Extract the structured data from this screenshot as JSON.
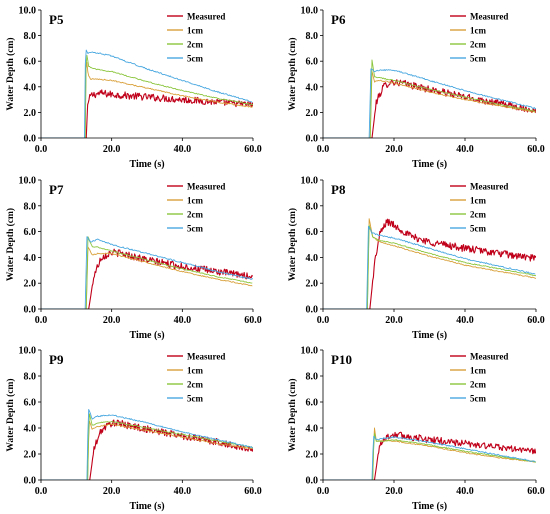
{
  "chart_data": [
    {
      "type": "line",
      "panel_label": "P5",
      "xlabel": "Time (s)",
      "ylabel": "Water Depth (cm)",
      "xlim": [
        0,
        60
      ],
      "ylim": [
        0,
        10
      ],
      "xticks": [
        "0.0",
        "20.0",
        "40.0",
        "60.0"
      ],
      "yticks": [
        "0.0",
        "2.0",
        "4.0",
        "6.0",
        "8.0",
        "10.0"
      ],
      "legend_position": "top-right",
      "grid": false,
      "series": [
        {
          "name": "Measured",
          "color": "#c0001a",
          "x": [
            12.8,
            13.2,
            14,
            15,
            17,
            20,
            30,
            40,
            50,
            60
          ],
          "y": [
            0,
            2.6,
            3.3,
            3.4,
            3.5,
            3.4,
            3.2,
            3.0,
            2.8,
            2.6
          ]
        },
        {
          "name": "1cm",
          "color": "#d9a03a",
          "x": [
            12.5,
            12.8,
            13.3,
            14,
            16,
            20,
            30,
            40,
            50,
            60
          ],
          "y": [
            0,
            6.5,
            5.0,
            4.6,
            4.6,
            4.5,
            3.9,
            3.3,
            2.8,
            2.4
          ]
        },
        {
          "name": "2cm",
          "color": "#8cc63f",
          "x": [
            12.5,
            12.8,
            13.5,
            15,
            17,
            20,
            30,
            40,
            50,
            60
          ],
          "y": [
            0,
            6.8,
            5.6,
            5.4,
            5.3,
            5.2,
            4.4,
            3.7,
            3.1,
            2.6
          ]
        },
        {
          "name": "5cm",
          "color": "#4aa8e0",
          "x": [
            12.3,
            12.6,
            13.2,
            15,
            17,
            20,
            30,
            40,
            50,
            60
          ],
          "y": [
            0,
            7.0,
            6.6,
            6.7,
            6.6,
            6.4,
            5.4,
            4.5,
            3.6,
            2.8
          ]
        }
      ]
    },
    {
      "type": "line",
      "panel_label": "P6",
      "xlabel": "Time (s)",
      "ylabel": "Water Depth (cm)",
      "xlim": [
        0,
        60
      ],
      "ylim": [
        0,
        10
      ],
      "xticks": [
        "0.0",
        "20.0",
        "40.0",
        "60.0"
      ],
      "yticks": [
        "0.0",
        "2.0",
        "4.0",
        "6.0",
        "8.0",
        "10.0"
      ],
      "legend_position": "top-right",
      "grid": false,
      "series": [
        {
          "name": "Measured",
          "color": "#c0001a",
          "x": [
            13.8,
            15,
            17,
            19,
            22,
            30,
            40,
            50,
            60
          ],
          "y": [
            0,
            2.8,
            4.0,
            4.4,
            4.3,
            3.8,
            3.2,
            2.7,
            2.1
          ]
        },
        {
          "name": "1cm",
          "color": "#d9a03a",
          "x": [
            13.3,
            13.8,
            14.5,
            16,
            20,
            30,
            40,
            50,
            60
          ],
          "y": [
            0,
            5.2,
            4.4,
            4.5,
            4.3,
            3.6,
            3.0,
            2.5,
            2.0
          ]
        },
        {
          "name": "2cm",
          "color": "#8cc63f",
          "x": [
            13.3,
            13.8,
            14.5,
            16,
            20,
            30,
            40,
            50,
            60
          ],
          "y": [
            0,
            6.1,
            4.8,
            4.7,
            4.5,
            3.8,
            3.2,
            2.6,
            2.1
          ]
        },
        {
          "name": "5cm",
          "color": "#4aa8e0",
          "x": [
            13.0,
            13.5,
            14.5,
            16,
            20,
            30,
            40,
            50,
            60
          ],
          "y": [
            0,
            5.4,
            5.2,
            5.3,
            5.3,
            4.5,
            3.7,
            3.0,
            2.3
          ]
        }
      ]
    },
    {
      "type": "line",
      "panel_label": "P7",
      "xlabel": "Time (s)",
      "ylabel": "Water Depth (cm)",
      "xlim": [
        0,
        60
      ],
      "ylim": [
        0,
        10
      ],
      "xticks": [
        "0.0",
        "20.0",
        "40.0",
        "60.0"
      ],
      "yticks": [
        "0.0",
        "2.0",
        "4.0",
        "6.0",
        "8.0",
        "10.0"
      ],
      "legend_position": "top-right",
      "grid": false,
      "series": [
        {
          "name": "Measured",
          "color": "#c0001a",
          "x": [
            13.5,
            15,
            17,
            20,
            23,
            30,
            40,
            50,
            60
          ],
          "y": [
            0,
            2.6,
            4.0,
            4.4,
            4.3,
            3.8,
            3.3,
            2.9,
            2.5
          ]
        },
        {
          "name": "1cm",
          "color": "#d9a03a",
          "x": [
            12.8,
            13.3,
            14.5,
            16,
            20,
            30,
            40,
            50,
            60
          ],
          "y": [
            0,
            4.8,
            4.2,
            4.3,
            4.3,
            3.6,
            2.9,
            2.3,
            1.8
          ]
        },
        {
          "name": "2cm",
          "color": "#8cc63f",
          "x": [
            12.8,
            13.3,
            14.5,
            16,
            20,
            30,
            40,
            50,
            60
          ],
          "y": [
            0,
            5.6,
            4.8,
            4.8,
            4.5,
            3.8,
            3.1,
            2.5,
            2.0
          ]
        },
        {
          "name": "5cm",
          "color": "#4aa8e0",
          "x": [
            12.5,
            13.0,
            14.0,
            16,
            20,
            30,
            40,
            50,
            60
          ],
          "y": [
            0,
            5.6,
            5.2,
            5.4,
            5.0,
            4.3,
            3.6,
            2.9,
            2.3
          ]
        }
      ]
    },
    {
      "type": "line",
      "panel_label": "P8",
      "xlabel": "Time (s)",
      "ylabel": "Water Depth (cm)",
      "xlim": [
        0,
        60
      ],
      "ylim": [
        0,
        10
      ],
      "xticks": [
        "0.0",
        "20.0",
        "40.0",
        "60.0"
      ],
      "yticks": [
        "0.0",
        "2.0",
        "4.0",
        "6.0",
        "8.0",
        "10.0"
      ],
      "legend_position": "top-right",
      "grid": false,
      "series": [
        {
          "name": "Measured",
          "color": "#c0001a",
          "x": [
            13.2,
            14.5,
            16,
            18,
            20,
            25,
            30,
            40,
            50,
            60
          ],
          "y": [
            0,
            3.5,
            5.8,
            6.8,
            6.5,
            5.6,
            5.2,
            4.7,
            4.3,
            3.9
          ]
        },
        {
          "name": "1cm",
          "color": "#d9a03a",
          "x": [
            12.5,
            13.0,
            14.0,
            16,
            20,
            30,
            40,
            50,
            60
          ],
          "y": [
            0,
            7.0,
            5.6,
            5.2,
            4.9,
            4.1,
            3.4,
            2.9,
            2.4
          ]
        },
        {
          "name": "2cm",
          "color": "#8cc63f",
          "x": [
            12.5,
            13.0,
            14.0,
            16,
            20,
            30,
            40,
            50,
            60
          ],
          "y": [
            0,
            6.5,
            5.6,
            5.3,
            5.1,
            4.3,
            3.6,
            3.1,
            2.6
          ]
        },
        {
          "name": "5cm",
          "color": "#4aa8e0",
          "x": [
            12.3,
            12.8,
            13.8,
            16,
            20,
            30,
            40,
            50,
            60
          ],
          "y": [
            0,
            6.4,
            5.9,
            5.7,
            5.5,
            4.7,
            3.9,
            3.3,
            2.7
          ]
        }
      ]
    },
    {
      "type": "line",
      "panel_label": "P9",
      "xlabel": "Time (s)",
      "ylabel": "Water Depth (cm)",
      "xlim": [
        0,
        60
      ],
      "ylim": [
        0,
        10
      ],
      "xticks": [
        "0.0",
        "20.0",
        "40.0",
        "60.0"
      ],
      "yticks": [
        "0.0",
        "2.0",
        "4.0",
        "6.0",
        "8.0",
        "10.0"
      ],
      "legend_position": "top-right",
      "grid": false,
      "series": [
        {
          "name": "Measured",
          "color": "#c0001a",
          "x": [
            13.8,
            15,
            17,
            20,
            23,
            30,
            40,
            50,
            60
          ],
          "y": [
            0,
            2.4,
            3.8,
            4.4,
            4.3,
            3.9,
            3.4,
            2.9,
            2.3
          ]
        },
        {
          "name": "1cm",
          "color": "#d9a03a",
          "x": [
            13.2,
            13.6,
            14.5,
            16,
            20,
            30,
            40,
            50,
            60
          ],
          "y": [
            0,
            4.6,
            3.9,
            4.1,
            4.3,
            3.8,
            3.3,
            2.8,
            2.4
          ]
        },
        {
          "name": "2cm",
          "color": "#8cc63f",
          "x": [
            13.2,
            13.6,
            14.5,
            16,
            20,
            30,
            40,
            50,
            60
          ],
          "y": [
            0,
            5.2,
            4.2,
            4.4,
            4.5,
            4.0,
            3.5,
            3.0,
            2.5
          ]
        },
        {
          "name": "5cm",
          "color": "#4aa8e0",
          "x": [
            13.0,
            13.4,
            14.5,
            16,
            20,
            30,
            40,
            50,
            60
          ],
          "y": [
            0,
            5.5,
            4.7,
            4.9,
            5.0,
            4.4,
            3.7,
            3.1,
            2.5
          ]
        }
      ]
    },
    {
      "type": "line",
      "panel_label": "P10",
      "xlabel": "Time (s)",
      "ylabel": "Water Depth (cm)",
      "xlim": [
        0,
        60
      ],
      "ylim": [
        0,
        10
      ],
      "xticks": [
        "0.0",
        "20.0",
        "40.0",
        "60.0"
      ],
      "yticks": [
        "0.0",
        "2.0",
        "4.0",
        "6.0",
        "8.0",
        "10.0"
      ],
      "legend_position": "top-right",
      "grid": false,
      "series": [
        {
          "name": "Measured",
          "color": "#c0001a",
          "x": [
            14.5,
            16,
            18,
            20,
            25,
            30,
            40,
            50,
            60
          ],
          "y": [
            0,
            2.8,
            3.3,
            3.5,
            3.3,
            3.1,
            2.8,
            2.5,
            2.2
          ]
        },
        {
          "name": "1cm",
          "color": "#d9a03a",
          "x": [
            14.0,
            14.4,
            15.0,
            17,
            20,
            30,
            40,
            50,
            60
          ],
          "y": [
            0,
            4.2,
            3.0,
            3.0,
            3.0,
            2.6,
            2.1,
            1.7,
            1.4
          ]
        },
        {
          "name": "2cm",
          "color": "#8cc63f",
          "x": [
            14.0,
            14.4,
            15.0,
            17,
            20,
            30,
            40,
            50,
            60
          ],
          "y": [
            0,
            3.7,
            3.0,
            3.0,
            3.1,
            2.7,
            2.2,
            1.8,
            1.4
          ]
        },
        {
          "name": "5cm",
          "color": "#4aa8e0",
          "x": [
            13.8,
            14.2,
            15.0,
            17,
            20,
            30,
            40,
            50,
            60
          ],
          "y": [
            0,
            3.4,
            3.1,
            3.2,
            3.3,
            2.9,
            2.4,
            1.9,
            1.4
          ]
        }
      ]
    }
  ]
}
